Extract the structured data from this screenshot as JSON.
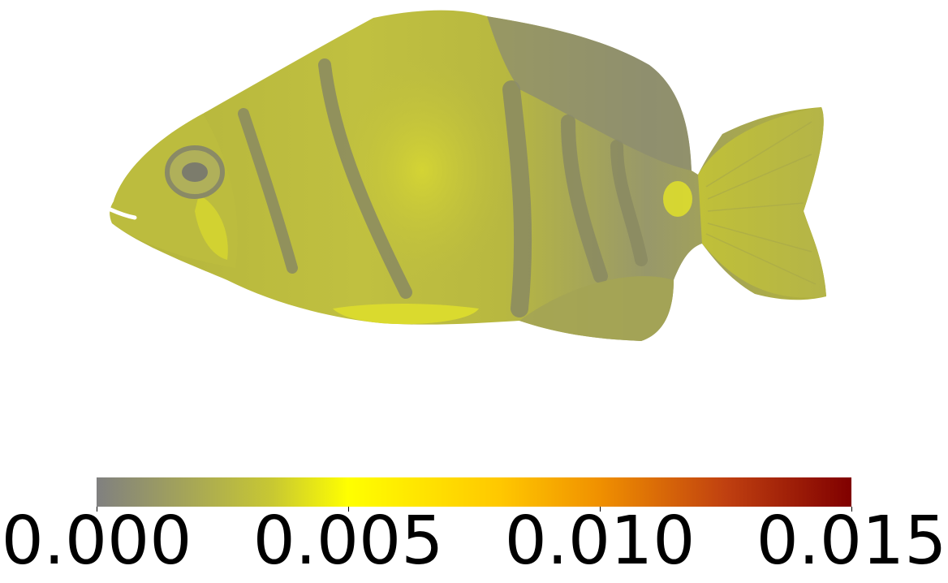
{
  "colorbar": {
    "min": 0.0,
    "max": 0.015,
    "ticks": [
      {
        "value": 0.0,
        "label": "0.000"
      },
      {
        "value": 0.005,
        "label": "0.005"
      },
      {
        "value": 0.01,
        "label": "0.010"
      },
      {
        "value": 0.015,
        "label": "0.015"
      }
    ],
    "colormap_stops": [
      {
        "value": 0.0,
        "color": "#808080"
      },
      {
        "value": 0.0035,
        "color": "#c8c832"
      },
      {
        "value": 0.005,
        "color": "#ffff00"
      },
      {
        "value": 0.008,
        "color": "#ffc800"
      },
      {
        "value": 0.01,
        "color": "#f09000"
      },
      {
        "value": 0.0125,
        "color": "#c04010"
      },
      {
        "value": 0.015,
        "color": "#800000"
      }
    ]
  },
  "subject": {
    "icon": "fish-icon",
    "body_color": "#b8b83c",
    "highlight_color": "#d8d830",
    "shadow_color": "#8a8a6a"
  }
}
